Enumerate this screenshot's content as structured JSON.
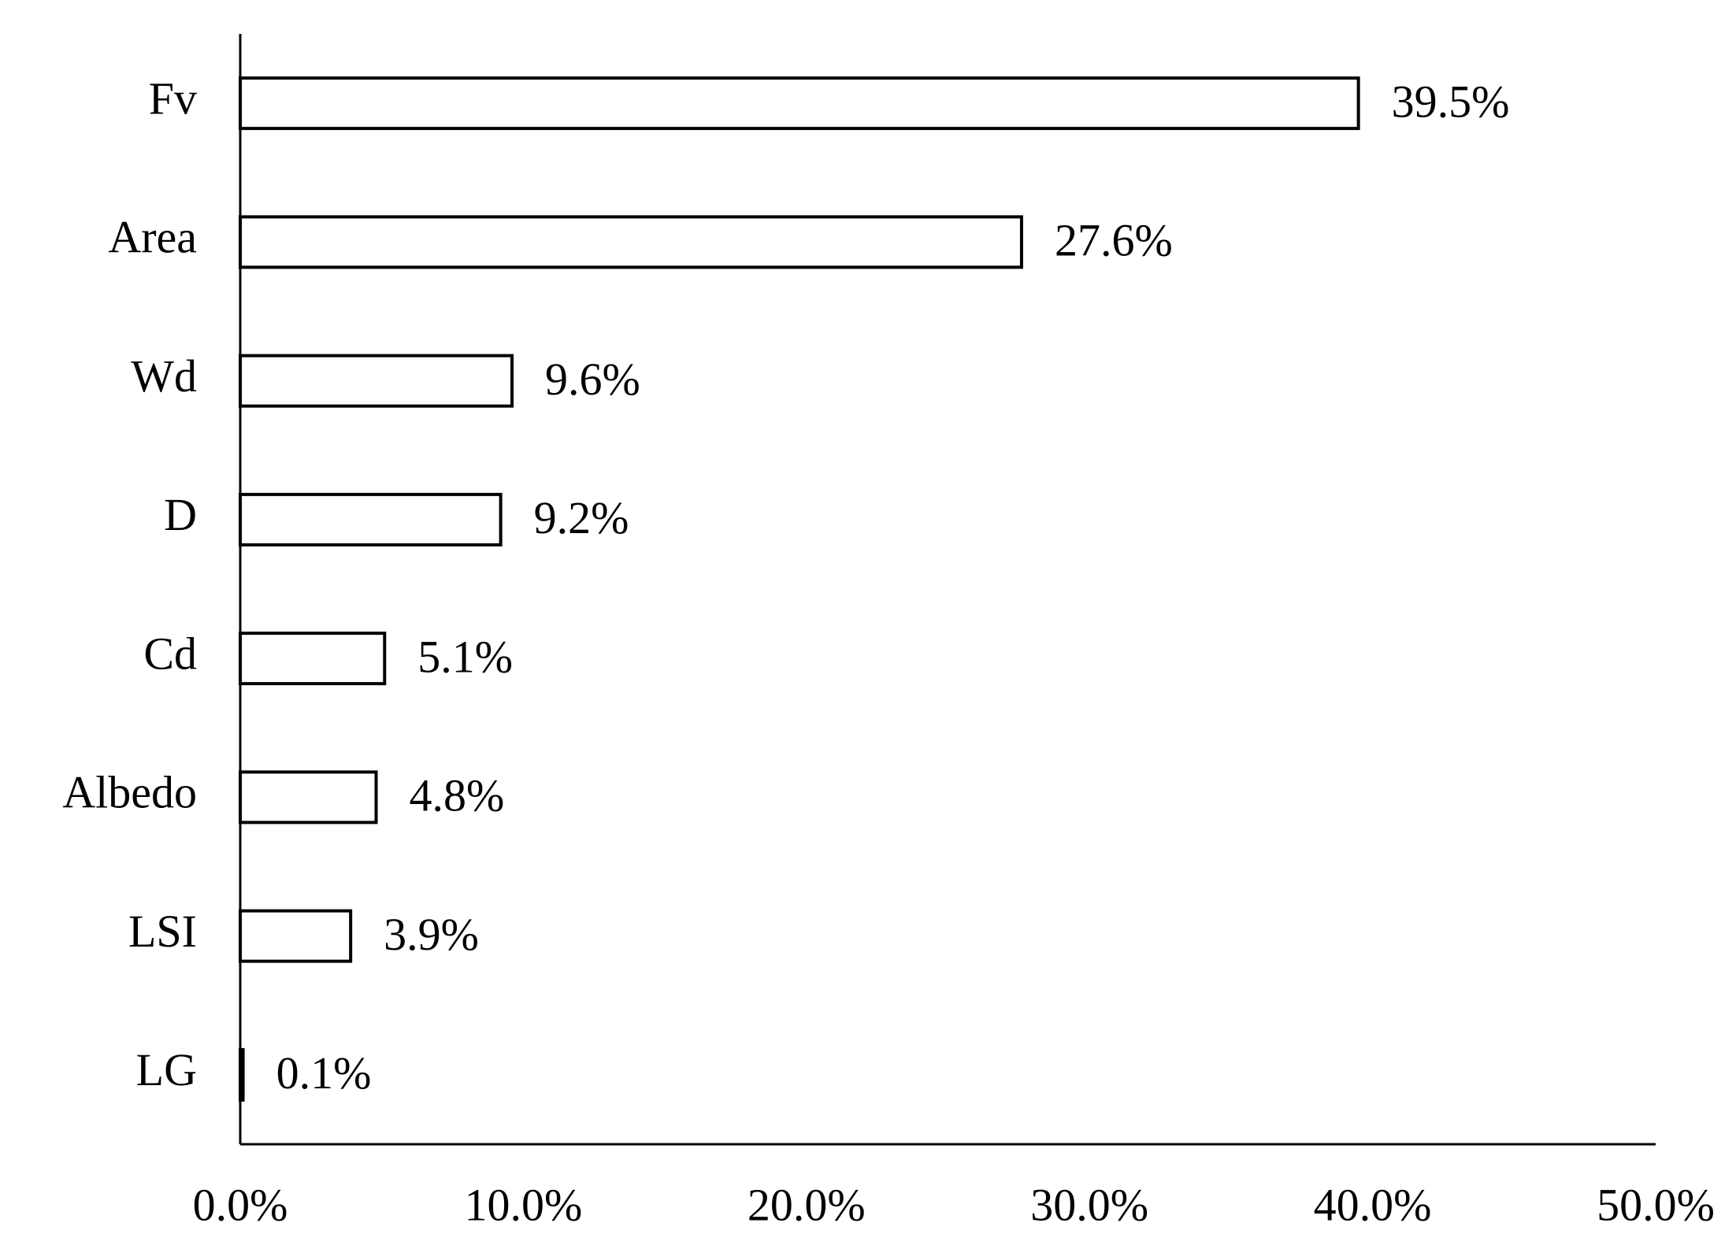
{
  "chart_data": {
    "type": "hbar",
    "categories": [
      "Fv",
      "Area",
      "Wd",
      "D",
      "Cd",
      "Albedo",
      "LSI",
      "LG"
    ],
    "values": [
      39.5,
      27.6,
      9.6,
      9.2,
      5.1,
      4.8,
      3.9,
      0.1
    ],
    "value_labels": [
      "39.5%",
      "27.6%",
      "9.6%",
      "9.2%",
      "5.1%",
      "4.8%",
      "3.9%",
      "0.1%"
    ],
    "color": "#ffffff",
    "xlim": [
      0,
      50
    ],
    "xticks": [
      {
        "value": 0,
        "label": "0.0%"
      },
      {
        "value": 10,
        "label": "10.0%"
      },
      {
        "value": 20,
        "label": "20.0%"
      },
      {
        "value": 30,
        "label": "30.0%"
      },
      {
        "value": 40,
        "label": "40.0%"
      },
      {
        "value": 50,
        "label": "50.0%"
      }
    ],
    "grid": false
  }
}
